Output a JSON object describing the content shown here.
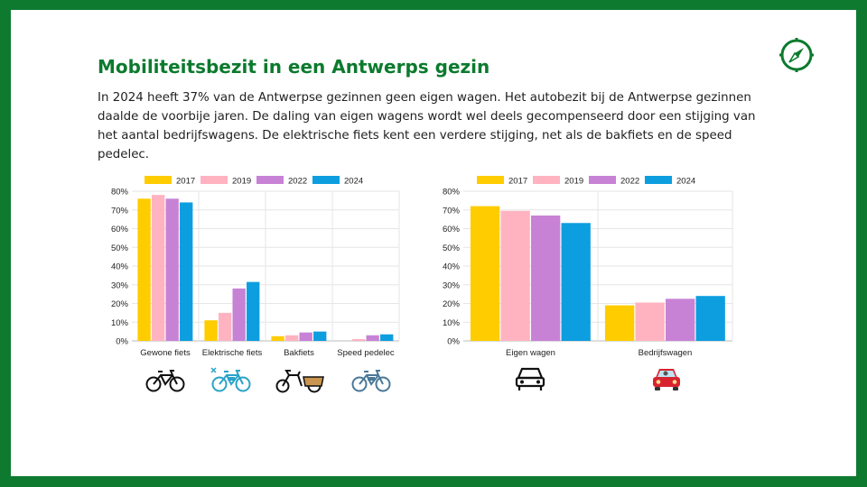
{
  "header": {
    "title": "Mobiliteitsbezit in een Antwerps gezin",
    "intro": "In 2024 heeft 37% van de Antwerpse gezinnen geen eigen wagen. Het autobezit bij de Antwerpse gezinnen daalde de voorbije jaren. De daling van eigen wagens wordt wel deels gecompenseerd door een stijging van het aantal bedrijfswagens. De elektrische fiets kent een verdere stijging, net als de bakfiets en de speed pedelec."
  },
  "icons": {
    "compass": "compass-icon",
    "category_icons_left": [
      "bicycle-icon",
      "electric-bicycle-icon",
      "cargo-bike-icon",
      "speed-pedelec-icon"
    ],
    "category_icons_right": [
      "car-icon",
      "company-car-icon"
    ]
  },
  "colors": {
    "frame": "#0e7a30",
    "title": "#0c7a2e",
    "series": [
      "#ffcc00",
      "#ffb3c1",
      "#c782d6",
      "#0d9ee0"
    ]
  },
  "chart_data": [
    {
      "type": "bar",
      "categories": [
        "Gewone fiets",
        "Elektrische fiets",
        "Bakfiets",
        "Speed pedelec"
      ],
      "series": [
        {
          "name": "2017",
          "color": "#ffcc00",
          "values": [
            76,
            11,
            2.5,
            0
          ]
        },
        {
          "name": "2019",
          "color": "#ffb3c1",
          "values": [
            78,
            15,
            3,
            1
          ]
        },
        {
          "name": "2022",
          "color": "#c782d6",
          "values": [
            76,
            28,
            4.5,
            3
          ]
        },
        {
          "name": "2024",
          "color": "#0d9ee0",
          "values": [
            74,
            31.5,
            5,
            3.5
          ]
        }
      ],
      "ylim": [
        0,
        80
      ],
      "yticks": [
        "0%",
        "10%",
        "20%",
        "30%",
        "40%",
        "50%",
        "60%",
        "70%",
        "80%"
      ],
      "grid": true,
      "legend": "top"
    },
    {
      "type": "bar",
      "categories": [
        "Eigen wagen",
        "Bedrijfswagen"
      ],
      "series": [
        {
          "name": "2017",
          "color": "#ffcc00",
          "values": [
            72,
            19
          ]
        },
        {
          "name": "2019",
          "color": "#ffb3c1",
          "values": [
            69.5,
            20.5
          ]
        },
        {
          "name": "2022",
          "color": "#c782d6",
          "values": [
            67,
            22.5
          ]
        },
        {
          "name": "2024",
          "color": "#0d9ee0",
          "values": [
            63,
            24
          ]
        }
      ],
      "ylim": [
        0,
        80
      ],
      "yticks": [
        "0%",
        "10%",
        "20%",
        "30%",
        "40%",
        "50%",
        "60%",
        "70%",
        "80%"
      ],
      "grid": true,
      "legend": "top"
    }
  ]
}
